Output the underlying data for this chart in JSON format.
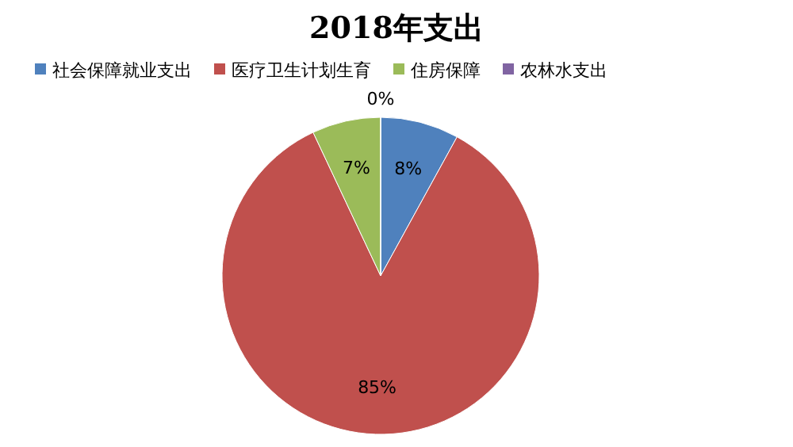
{
  "chart_data": {
    "type": "pie",
    "title": "2018年支出",
    "categories": [
      "社会保障就业支出",
      "医疗卫生计划生育",
      "住房保障",
      "农林水支出"
    ],
    "values": [
      8,
      85,
      7,
      0
    ],
    "colors": [
      "#4f81bd",
      "#c0504d",
      "#9bbb59",
      "#8064a2"
    ],
    "value_labels": [
      "8%",
      "85%",
      "7%",
      "0%"
    ],
    "legend": "top"
  }
}
